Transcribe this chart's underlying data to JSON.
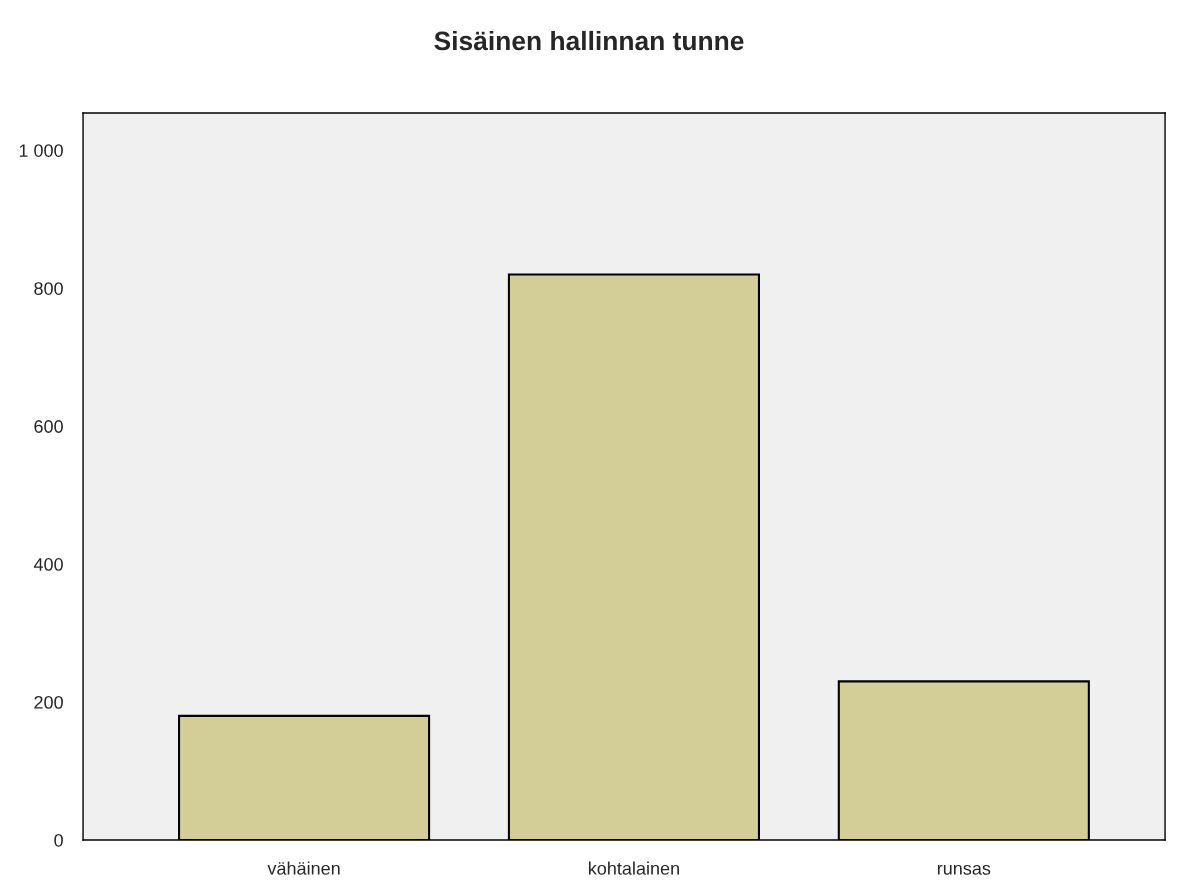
{
  "chart_data": {
    "type": "bar",
    "title": "Sisäinen hallinnan tunne",
    "categories": [
      "vähäinen",
      "kohtalainen",
      "runsas"
    ],
    "values": [
      180,
      820,
      230
    ],
    "color": "#d3ce97",
    "ylim": [
      0,
      1054
    ],
    "yticks": [
      0,
      200,
      400,
      600,
      800,
      {
        "value": 1000,
        "label": "1 000"
      }
    ],
    "grid": false,
    "legend": false
  }
}
